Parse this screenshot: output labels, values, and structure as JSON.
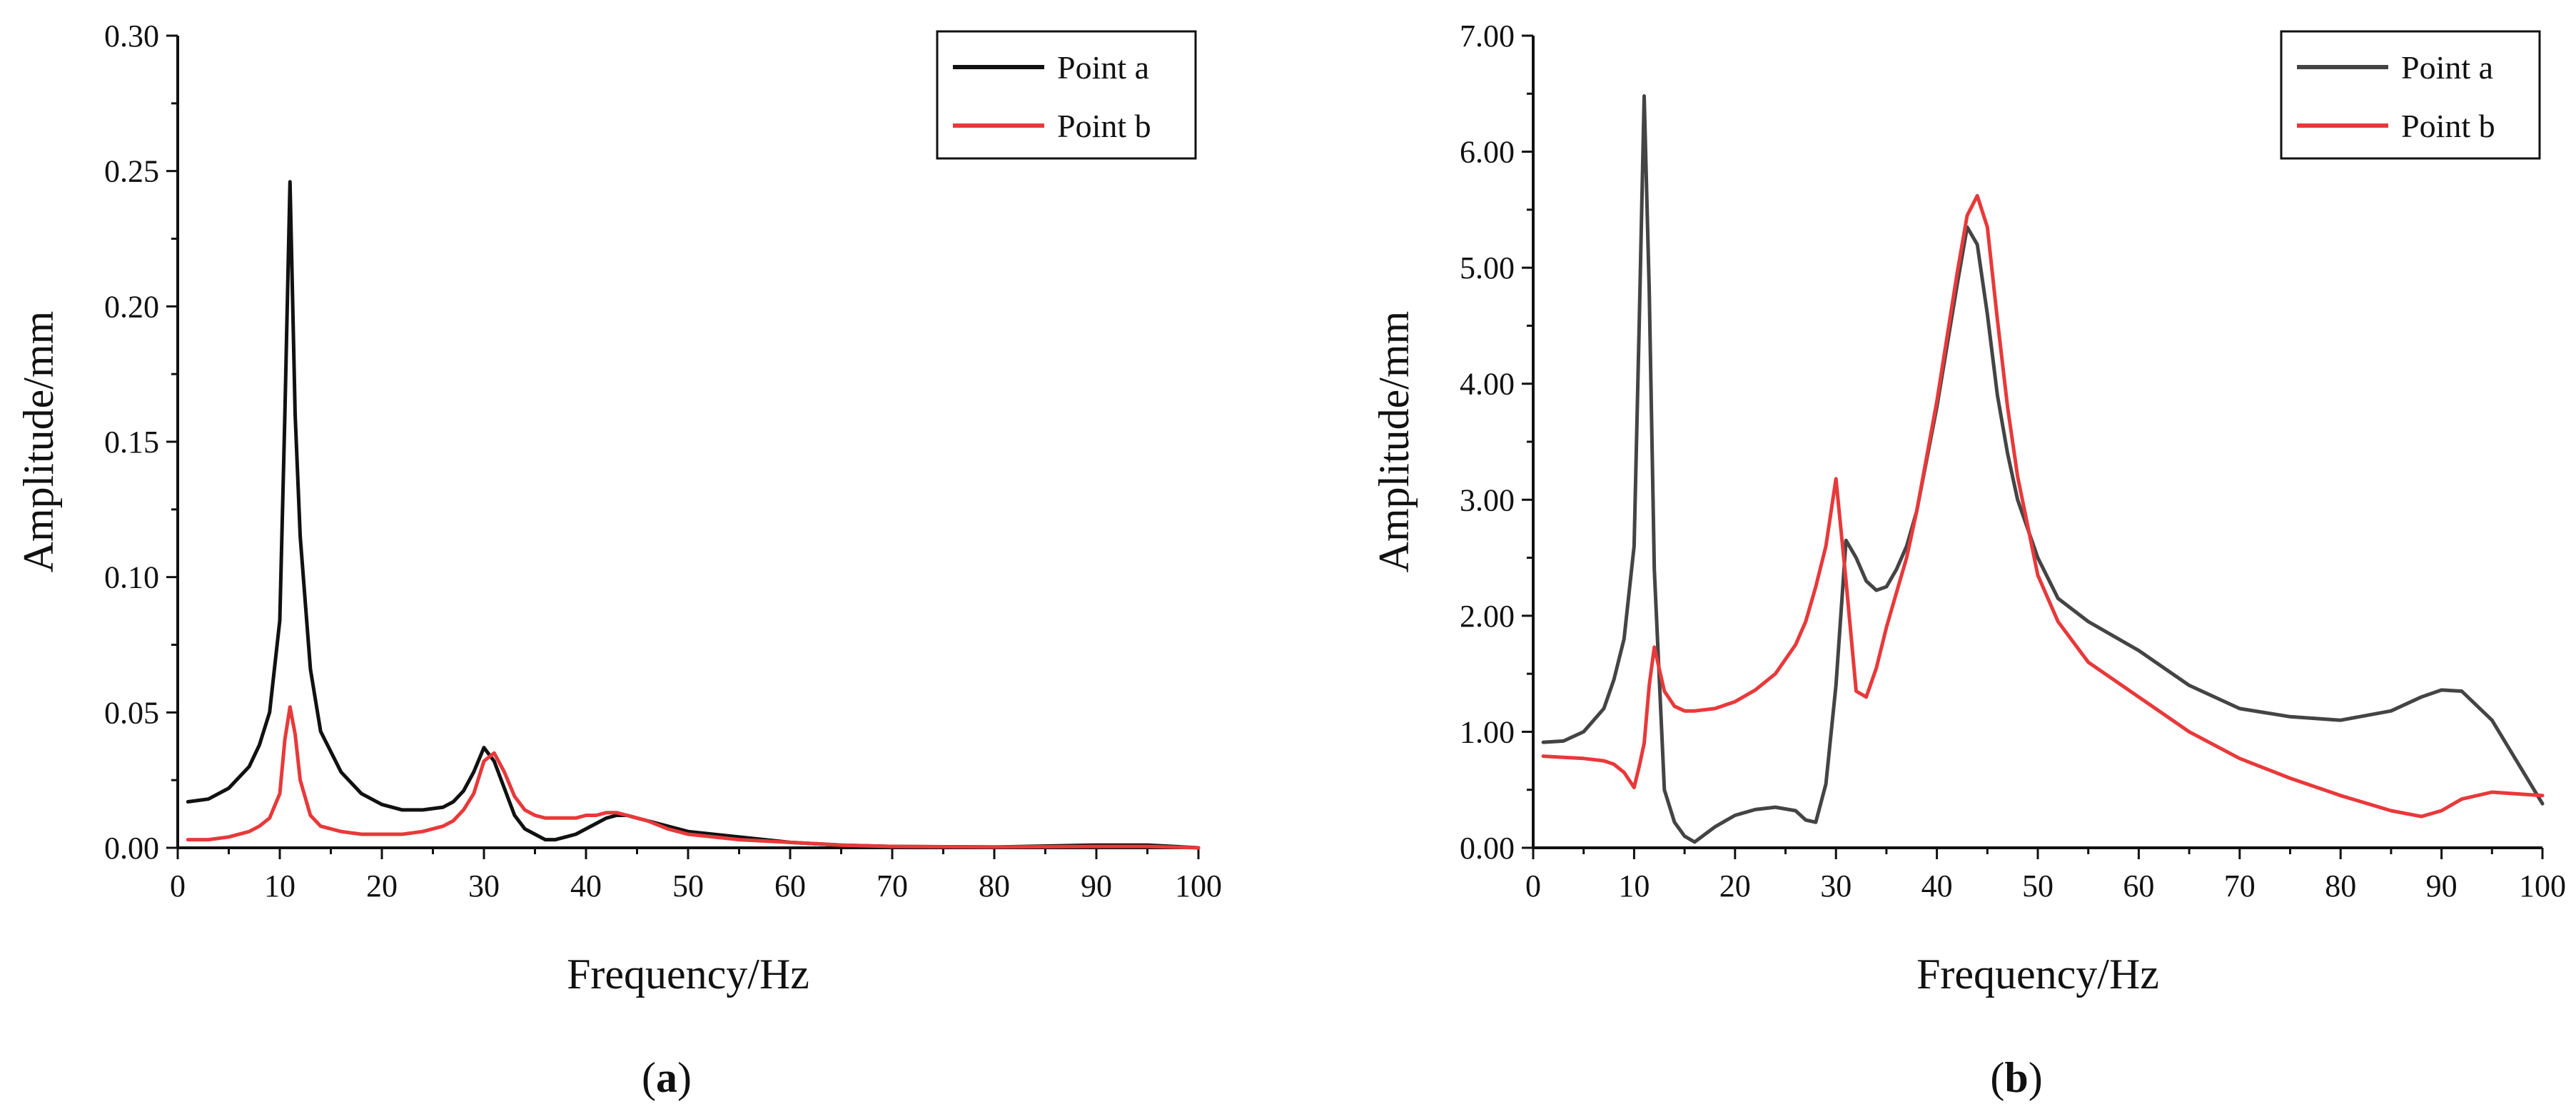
{
  "chart_data": [
    {
      "type": "line",
      "panel_label": "a",
      "xlabel": "Frequency/Hz",
      "ylabel": "Amplitude/mm",
      "xlim": [
        0,
        100
      ],
      "ylim": [
        0,
        0.3
      ],
      "x_ticks": [
        "0",
        "10",
        "20",
        "30",
        "40",
        "50",
        "60",
        "70",
        "80",
        "90",
        "100"
      ],
      "y_ticks": [
        "0.00",
        "0.05",
        "0.10",
        "0.15",
        "0.20",
        "0.25",
        "0.30"
      ],
      "legend_position": "top-right",
      "grid": false,
      "series": [
        {
          "name": "Point a",
          "color": "#111111",
          "x": [
            1,
            3,
            5,
            7,
            8,
            9,
            10,
            10.5,
            11,
            11.5,
            12,
            13,
            14,
            16,
            18,
            20,
            22,
            24,
            26,
            27,
            28,
            29,
            30,
            31,
            32,
            33,
            34,
            35,
            36,
            37,
            38,
            39,
            40,
            41,
            42,
            43,
            44,
            45,
            46,
            48,
            50,
            55,
            60,
            65,
            70,
            80,
            90,
            95,
            100
          ],
          "y": [
            0.017,
            0.018,
            0.022,
            0.03,
            0.038,
            0.05,
            0.084,
            0.16,
            0.246,
            0.16,
            0.115,
            0.066,
            0.043,
            0.028,
            0.02,
            0.016,
            0.014,
            0.014,
            0.015,
            0.017,
            0.021,
            0.028,
            0.037,
            0.032,
            0.022,
            0.012,
            0.007,
            0.005,
            0.003,
            0.003,
            0.004,
            0.005,
            0.007,
            0.009,
            0.011,
            0.012,
            0.012,
            0.011,
            0.01,
            0.008,
            0.006,
            0.004,
            0.002,
            0.001,
            0.0005,
            0.0003,
            0.001,
            0.001,
            0.0
          ]
        },
        {
          "name": "Point b",
          "color": "#e8393a",
          "x": [
            1,
            3,
            5,
            7,
            8,
            9,
            10,
            10.5,
            11,
            11.5,
            12,
            13,
            14,
            16,
            18,
            20,
            22,
            24,
            26,
            27,
            28,
            29,
            30,
            31,
            32,
            33,
            34,
            35,
            36,
            37,
            38,
            39,
            40,
            41,
            42,
            43,
            44,
            45,
            46,
            48,
            50,
            55,
            60,
            65,
            70,
            80,
            90,
            95,
            100
          ],
          "y": [
            0.003,
            0.003,
            0.004,
            0.006,
            0.008,
            0.011,
            0.02,
            0.04,
            0.052,
            0.042,
            0.025,
            0.012,
            0.008,
            0.006,
            0.005,
            0.005,
            0.005,
            0.006,
            0.008,
            0.01,
            0.014,
            0.02,
            0.032,
            0.035,
            0.028,
            0.019,
            0.014,
            0.012,
            0.011,
            0.011,
            0.011,
            0.011,
            0.012,
            0.012,
            0.013,
            0.013,
            0.012,
            0.011,
            0.01,
            0.007,
            0.005,
            0.003,
            0.002,
            0.001,
            0.0005,
            0.0003,
            0.0005,
            0.0005,
            0.0
          ]
        }
      ]
    },
    {
      "type": "line",
      "panel_label": "b",
      "xlabel": "Frequency/Hz",
      "ylabel": "Amplitude/mm",
      "xlim": [
        0,
        100
      ],
      "ylim": [
        0,
        7.0
      ],
      "x_ticks": [
        "0",
        "10",
        "20",
        "30",
        "40",
        "50",
        "60",
        "70",
        "80",
        "90",
        "100"
      ],
      "y_ticks": [
        "0.00",
        "1.00",
        "2.00",
        "3.00",
        "4.00",
        "5.00",
        "6.00",
        "7.00"
      ],
      "legend_position": "top-right",
      "grid": false,
      "series": [
        {
          "name": "Point a",
          "color": "#444444",
          "x": [
            1,
            3,
            5,
            7,
            8,
            9,
            10,
            10.5,
            11,
            11.5,
            12,
            13,
            14,
            15,
            16,
            18,
            20,
            22,
            24,
            26,
            27,
            28,
            29,
            30,
            31,
            32,
            33,
            34,
            35,
            36,
            37,
            38,
            40,
            42,
            43,
            44,
            45,
            46,
            47,
            48,
            50,
            52,
            55,
            60,
            65,
            70,
            75,
            80,
            85,
            88,
            90,
            92,
            95,
            100
          ],
          "y": [
            0.91,
            0.92,
            1.0,
            1.2,
            1.45,
            1.8,
            2.6,
            4.5,
            6.48,
            4.8,
            2.4,
            0.5,
            0.22,
            0.1,
            0.05,
            0.18,
            0.28,
            0.33,
            0.35,
            0.32,
            0.24,
            0.22,
            0.55,
            1.4,
            2.65,
            2.5,
            2.3,
            2.22,
            2.25,
            2.4,
            2.6,
            2.9,
            3.8,
            4.85,
            5.35,
            5.2,
            4.6,
            3.9,
            3.4,
            3.0,
            2.5,
            2.15,
            1.95,
            1.7,
            1.4,
            1.2,
            1.13,
            1.1,
            1.18,
            1.3,
            1.36,
            1.35,
            1.1,
            0.38
          ]
        },
        {
          "name": "Point b",
          "color": "#e8393a",
          "x": [
            1,
            3,
            5,
            7,
            8,
            9,
            10,
            10.5,
            11,
            11.5,
            12,
            13,
            14,
            15,
            16,
            18,
            20,
            22,
            24,
            26,
            27,
            28,
            29,
            30,
            31,
            32,
            33,
            34,
            35,
            36,
            37,
            38,
            40,
            42,
            43,
            44,
            45,
            46,
            47,
            48,
            50,
            52,
            55,
            60,
            65,
            70,
            75,
            80,
            85,
            88,
            90,
            92,
            95,
            100
          ],
          "y": [
            0.79,
            0.78,
            0.77,
            0.75,
            0.72,
            0.65,
            0.52,
            0.7,
            0.9,
            1.4,
            1.73,
            1.35,
            1.22,
            1.18,
            1.18,
            1.2,
            1.26,
            1.36,
            1.5,
            1.75,
            1.95,
            2.25,
            2.6,
            3.18,
            2.3,
            1.35,
            1.3,
            1.55,
            1.9,
            2.2,
            2.5,
            2.9,
            3.85,
            4.95,
            5.45,
            5.62,
            5.35,
            4.55,
            3.8,
            3.2,
            2.35,
            1.95,
            1.6,
            1.3,
            1.0,
            0.77,
            0.6,
            0.45,
            0.32,
            0.27,
            0.32,
            0.42,
            0.48,
            0.45
          ]
        }
      ]
    }
  ]
}
